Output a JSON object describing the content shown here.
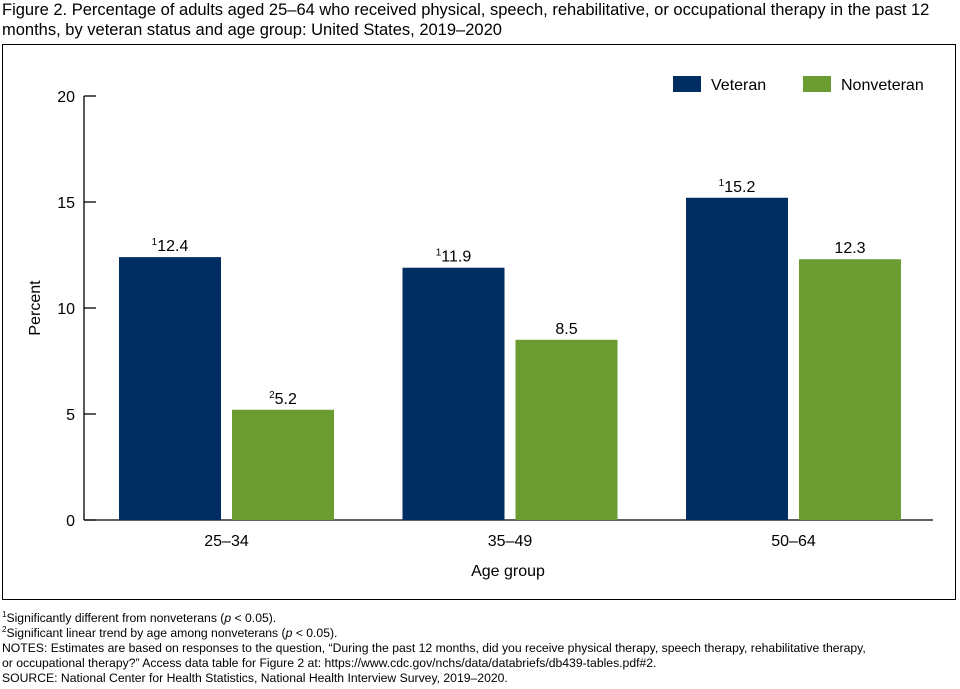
{
  "figure": {
    "title": "Figure 2. Percentage of adults aged 25–64 who received physical, speech, rehabilitative, or occupational therapy in the past 12 months, by veteran status and age group: United States, 2019–2020"
  },
  "chart_data": {
    "type": "bar",
    "categories": [
      "25–34",
      "35–49",
      "50–64"
    ],
    "series": [
      {
        "name": "Veteran",
        "color": "#002d62",
        "values": [
          12.4,
          11.9,
          15.2
        ],
        "superscripts": [
          "1",
          "1",
          "1"
        ]
      },
      {
        "name": "Nonveteran",
        "color": "#6b9c32",
        "values": [
          5.2,
          8.5,
          12.3
        ],
        "superscripts": [
          "2",
          "",
          ""
        ]
      }
    ],
    "xlabel": "Age group",
    "ylabel": "Percent",
    "ylim": [
      0,
      20
    ],
    "yticks": [
      0,
      5,
      10,
      15,
      20
    ],
    "legend_position": "top-right",
    "grid": false
  },
  "footnotes": {
    "note1_mark": "1",
    "note1_text_a": "Significantly different from nonveterans (",
    "note1_p": "p",
    "note1_text_b": " < 0.05).",
    "note2_mark": "2",
    "note2_text_a": "Significant linear trend by age among nonveterans (",
    "note2_p": "p",
    "note2_text_b": " < 0.05).",
    "notes_line1": "NOTES: Estimates are based on responses to the question, “During the past 12 months, did you receive physical therapy, speech therapy, rehabilitative therapy,",
    "notes_line2": "or occupational therapy?” Access data table for Figure 2 at: https://www.cdc.gov/nchs/data/databriefs/db439-tables.pdf#2.",
    "source": "SOURCE: National Center for Health Statistics, National Health Interview Survey, 2019–2020."
  }
}
